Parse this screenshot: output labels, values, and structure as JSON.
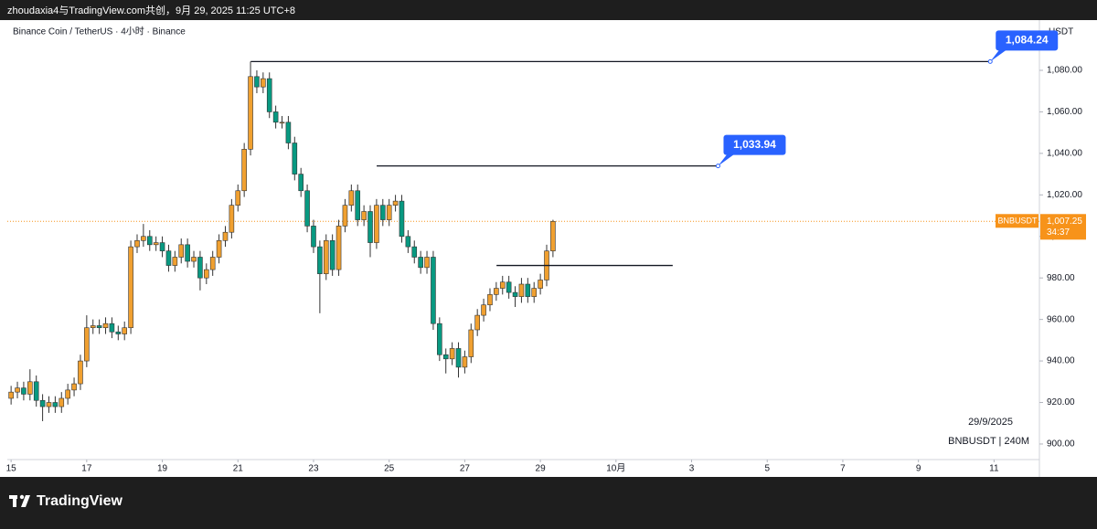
{
  "header": {
    "caption": "zhoudaxia4与TradingView.com共创，9月 29, 2025 11:25 UTC+8"
  },
  "footer": {
    "brand": "TradingView"
  },
  "chart_data": {
    "type": "candlestick",
    "title": "Binance Coin / TetherUS · 4小时 · Binance",
    "y_axis_unit": "USDT",
    "date_note": "29/9/2025",
    "interval_note": "BNBUSDT | 240M",
    "up_color": "#f0a030",
    "down_color": "#089981",
    "grid": false,
    "x": [
      15,
      15.1667,
      15.3333,
      15.5,
      15.6667,
      15.8333,
      16,
      16.1667,
      16.3333,
      16.5,
      16.6667,
      16.8333,
      17,
      17.1667,
      17.3333,
      17.5,
      17.6667,
      17.8333,
      18,
      18.1667,
      18.3333,
      18.5,
      18.6667,
      18.8333,
      19,
      19.1667,
      19.3333,
      19.5,
      19.6667,
      19.8333,
      20,
      20.1667,
      20.3333,
      20.5,
      20.6667,
      20.8333,
      21,
      21.1667,
      21.3333,
      21.5,
      21.6667,
      21.8333,
      22,
      22.1667,
      22.3333,
      22.5,
      22.6667,
      22.8333,
      23,
      23.1667,
      23.3333,
      23.5,
      23.6667,
      23.8333,
      24,
      24.1667,
      24.3333,
      24.5,
      24.6667,
      24.8333,
      25,
      25.1667,
      25.3333,
      25.5,
      25.6667,
      25.8333,
      26,
      26.1667,
      26.3333,
      26.5,
      26.6667,
      26.8333,
      27,
      27.1667,
      27.3333,
      27.5,
      27.6667,
      27.8333,
      28,
      28.1667,
      28.3333,
      28.5,
      28.6667,
      28.8333,
      29,
      29.1667,
      29.3333
    ],
    "open": [
      922,
      925,
      927,
      924,
      930,
      921,
      918,
      920,
      918,
      922,
      926,
      929,
      940,
      956,
      957,
      956,
      958,
      954,
      953,
      956,
      995,
      998,
      1000,
      996,
      997,
      993,
      986,
      990,
      996,
      988,
      990,
      980,
      984,
      990,
      998,
      1002,
      1015,
      1022,
      1042,
      1077,
      1072,
      1076,
      1060,
      1055,
      1055,
      1045,
      1030,
      1022,
      1005,
      995,
      982,
      998,
      984,
      1005,
      1015,
      1022,
      1008,
      1012,
      997,
      1015,
      1008,
      1015,
      1017,
      1000,
      995,
      990,
      985,
      990,
      958,
      943,
      941,
      946,
      937,
      942,
      955,
      962,
      967,
      972,
      975,
      978,
      973,
      971,
      977,
      971,
      975,
      979,
      993
    ],
    "high": [
      928,
      930,
      930,
      936,
      933,
      924,
      923,
      923,
      925,
      929,
      932,
      943,
      962,
      960,
      960,
      961,
      961,
      957,
      959,
      998,
      1001,
      1006,
      1003,
      1000,
      1000,
      996,
      993,
      999,
      999,
      993,
      993,
      987,
      993,
      1001,
      1005,
      1018,
      1025,
      1045,
      1084.24,
      1080,
      1079,
      1079,
      1063,
      1058,
      1058,
      1048,
      1033,
      1025,
      1008,
      998,
      1001,
      1001,
      1008,
      1018,
      1025,
      1025,
      1015,
      1015,
      1018,
      1018,
      1018,
      1020,
      1020,
      1003,
      998,
      993,
      993,
      993,
      961,
      946,
      949,
      949,
      945,
      958,
      965,
      970,
      975,
      978,
      981,
      981,
      976,
      980,
      980,
      978,
      982,
      996,
      1008
    ],
    "low": [
      919,
      922,
      921,
      921,
      918,
      911,
      915,
      915,
      915,
      919,
      923,
      926,
      937,
      953,
      953,
      953,
      951,
      950,
      950,
      953,
      992,
      995,
      993,
      993,
      990,
      983,
      983,
      987,
      985,
      985,
      974,
      977,
      981,
      987,
      995,
      999,
      1012,
      1019,
      1039,
      1069,
      1069,
      1057,
      1052,
      1052,
      1042,
      1027,
      1019,
      1002,
      992,
      963,
      979,
      981,
      981,
      1002,
      1012,
      1005,
      1005,
      990,
      994,
      1005,
      1005,
      1012,
      997,
      992,
      987,
      982,
      982,
      955,
      940,
      934,
      938,
      932,
      934,
      939,
      952,
      959,
      964,
      969,
      972,
      970,
      966,
      968,
      968,
      968,
      972,
      976,
      990
    ],
    "close": [
      925,
      927,
      924,
      930,
      921,
      918,
      920,
      918,
      922,
      926,
      929,
      940,
      956,
      957,
      956,
      958,
      954,
      953,
      956,
      995,
      998,
      1000,
      996,
      997,
      993,
      986,
      990,
      996,
      988,
      990,
      980,
      984,
      990,
      998,
      1002,
      1015,
      1022,
      1042,
      1077,
      1072,
      1076,
      1060,
      1055,
      1055,
      1045,
      1030,
      1022,
      1005,
      995,
      982,
      998,
      984,
      1005,
      1015,
      1022,
      1008,
      1012,
      997,
      1015,
      1008,
      1015,
      1017,
      1000,
      995,
      990,
      985,
      990,
      958,
      943,
      941,
      946,
      937,
      942,
      955,
      962,
      967,
      972,
      975,
      978,
      973,
      971,
      977,
      971,
      975,
      979,
      993,
      1007.25
    ],
    "xlim": [
      14.9,
      42.2
    ],
    "xticks": [
      15,
      17,
      19,
      21,
      23,
      25,
      27,
      29,
      {
        "value": 31,
        "label": "10月"
      },
      {
        "value": 33,
        "label": "3"
      },
      {
        "value": 35,
        "label": "5"
      },
      {
        "value": 37,
        "label": "7"
      },
      {
        "value": 39,
        "label": "9"
      },
      {
        "value": 41,
        "label": "11"
      }
    ],
    "ylim": [
      892.5,
      1104.2
    ],
    "yticks": [
      {
        "value": 900,
        "label": "900.00"
      },
      {
        "value": 920,
        "label": "920.00"
      },
      {
        "value": 940,
        "label": "940.00"
      },
      {
        "value": 960,
        "label": "960.00"
      },
      {
        "value": 980,
        "label": "980.00"
      },
      {
        "value": 1000,
        "label": "1,000.00"
      },
      {
        "value": 1020,
        "label": "1,020.00"
      },
      {
        "value": 1040,
        "label": "1,040.00"
      },
      {
        "value": 1060,
        "label": "1,060.00"
      },
      {
        "value": 1080,
        "label": "1,080.00"
      }
    ],
    "levels": [
      {
        "value": 1084.24,
        "label": "1,084.24",
        "x": [
          21.34,
          40.9
        ]
      },
      {
        "value": 1033.94,
        "label": "1,033.94",
        "x": [
          24.67,
          33.7
        ]
      },
      {
        "value": 986,
        "x": [
          27.84,
          32.5
        ]
      }
    ],
    "last_price": {
      "value": 1007.25,
      "label": "1,007.25",
      "symbol": "BNBUSDT",
      "countdown": "34:37",
      "color": "#f7931a"
    }
  }
}
